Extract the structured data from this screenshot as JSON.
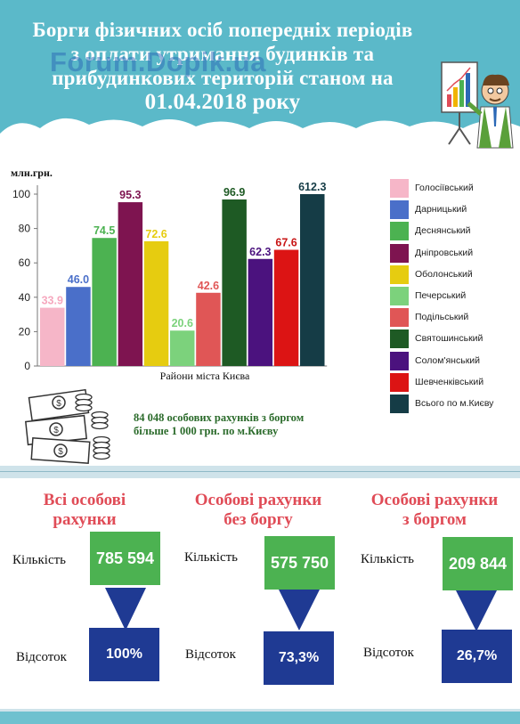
{
  "header": {
    "title_line1": "Борги фізичних осіб попередніх періодів",
    "title_line2": "з оплати утримання будинків та",
    "title_line3": "прибудинкових територій станом на",
    "title_date": "01.04.2018",
    "title_suffix": "року",
    "watermark": "Forum.Dopik.ua"
  },
  "chart_data": {
    "type": "bar",
    "unit_label": "млн.грн.",
    "xlabel": "Райони міста Києва",
    "ylim": [
      0,
      100
    ],
    "yticks": [
      0,
      20,
      40,
      60,
      80,
      100
    ],
    "categories": [
      "Голосіївський",
      "Дарницький",
      "Деснянський",
      "Дніпровський",
      "Оболонський",
      "Печерський",
      "Подільський",
      "Святошинський",
      "Солом'янський",
      "Шевченківський",
      "Всього по м.Києву"
    ],
    "values": [
      33.9,
      46.0,
      74.5,
      95.3,
      72.6,
      20.6,
      42.6,
      96.9,
      62.3,
      67.6,
      612.3
    ],
    "value_labels": [
      "33.9",
      "46.0",
      "74.5",
      "95.3",
      "72.6",
      "20.6",
      "42.6",
      "96.9",
      "62.3",
      "67.6",
      "612.3"
    ],
    "colors": [
      "#f6b6c8",
      "#4a6fc9",
      "#4cb251",
      "#7e1450",
      "#e6cc10",
      "#7cd27c",
      "#e05656",
      "#1e5a24",
      "#4b127e",
      "#dc1414",
      "#153c46"
    ],
    "label_colors": [
      "#f6a8be",
      "#4a6fc9",
      "#4cb251",
      "#7e1450",
      "#e6cc10",
      "#7cd27c",
      "#e05656",
      "#1e5a24",
      "#4b127e",
      "#c81414",
      "#153c46"
    ],
    "grid": false,
    "legend_position": "right"
  },
  "money_info": {
    "line1": "84 048 особових рахунків з боргом",
    "line2": "більше 1 000 грн. по м.Києву"
  },
  "stats": {
    "row_label_count": "Кількість",
    "row_label_percent": "Відсоток",
    "blocks": [
      {
        "title_line1": "Всі особові",
        "title_line2": "рахунки",
        "count": "785 594",
        "percent": "100%"
      },
      {
        "title_line1": "Особові рахунки",
        "title_line2": "без боргу",
        "count": "575 750",
        "percent": "73,3%"
      },
      {
        "title_line1": "Особові рахунки",
        "title_line2": "з боргом",
        "count": "209 844",
        "percent": "26,7%"
      }
    ]
  },
  "colors": {
    "header_band": "#5bb9c9",
    "stat_title": "#e04c57",
    "green_box": "#4cb251",
    "blue_box": "#1f3a93",
    "money_text": "#2b6b2b"
  }
}
